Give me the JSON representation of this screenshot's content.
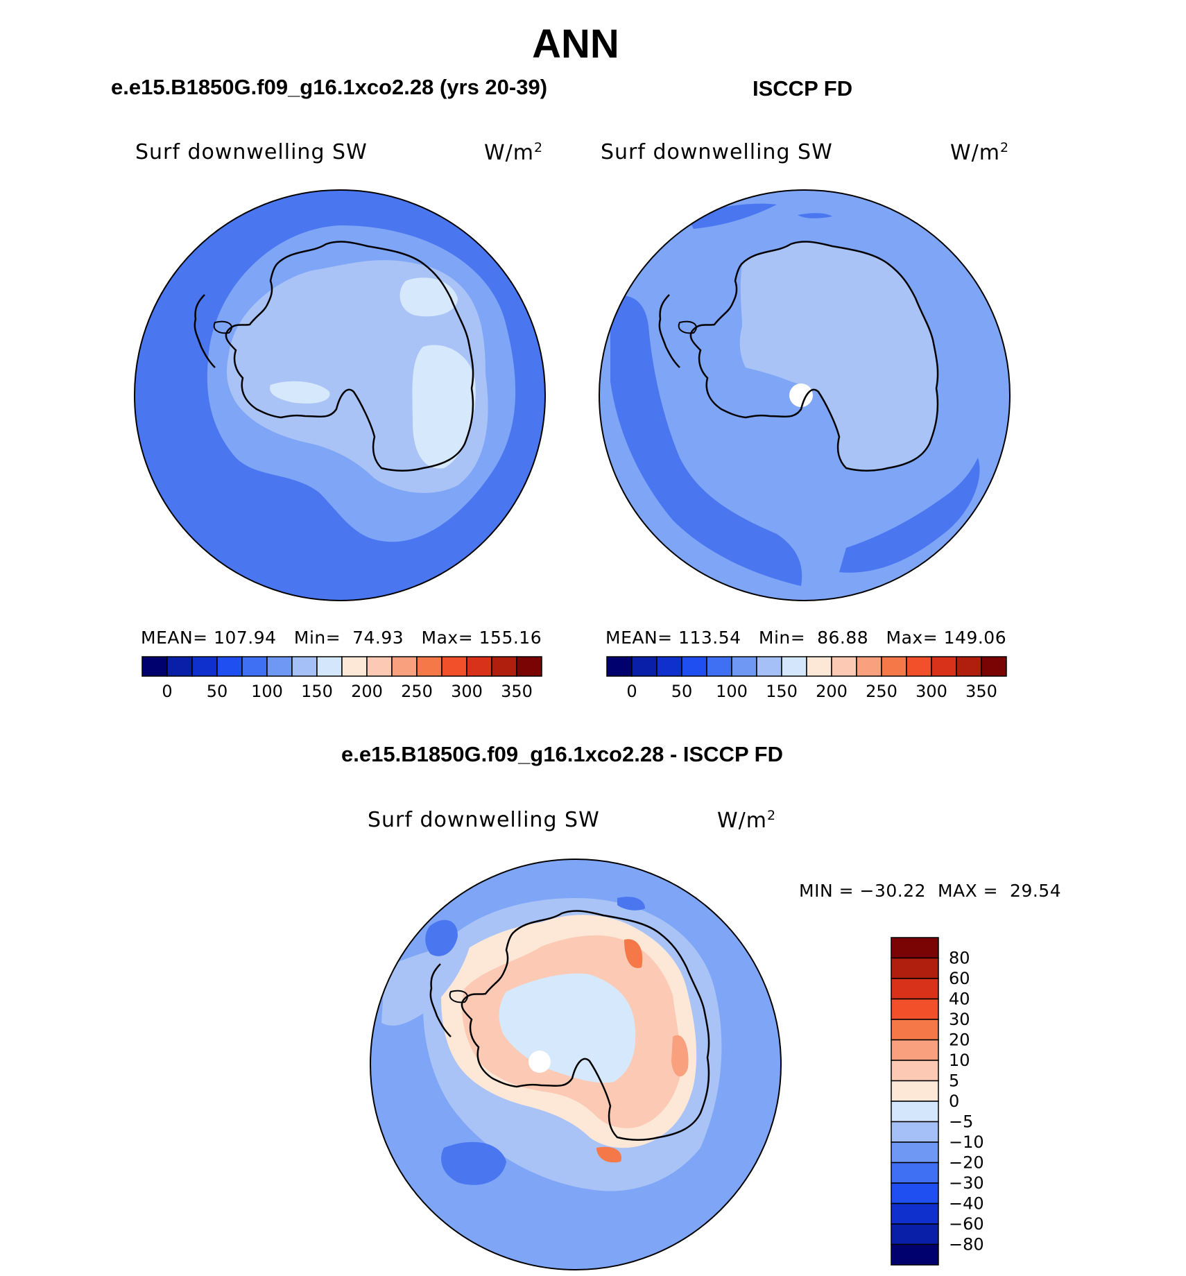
{
  "title": "ANN",
  "panels": [
    {
      "id": "model",
      "heading": "e.e15.B1850G.f09_g16.1xco2.28 (yrs 20-39)",
      "variable": "Surf downwelling SW",
      "units": "W/m",
      "units_exp": "2",
      "mean_label": "MEAN=",
      "mean": "107.94",
      "min_label": "Min=",
      "min": "74.93",
      "max_label": "Max=",
      "max": "155.16"
    },
    {
      "id": "obs",
      "heading": "ISCCP FD",
      "variable": "Surf downwelling SW",
      "units": "W/m",
      "units_exp": "2",
      "mean_label": "MEAN=",
      "mean": "113.54",
      "min_label": "Min=",
      "min": "86.88",
      "max_label": "Max=",
      "max": "149.06"
    }
  ],
  "abs_colorbar": {
    "colors": [
      "#00006e",
      "#0a1fa8",
      "#0f30cc",
      "#1f4ff0",
      "#3f6ff2",
      "#6f98f4",
      "#a5c0f6",
      "#d3e6fb",
      "#fde8d8",
      "#fccab4",
      "#f9a07e",
      "#f57848",
      "#f2502a",
      "#d8321a",
      "#b01e0e",
      "#7a0403"
    ],
    "tick_labels": [
      "0",
      "50",
      "100",
      "150",
      "200",
      "250",
      "300",
      "350"
    ]
  },
  "difference": {
    "heading": "e.e15.B1850G.f09_g16.1xco2.28 - ISCCP FD",
    "variable": "Surf downwelling SW",
    "units": "W/m",
    "units_exp": "2",
    "min_label": "MIN =",
    "min": "−30.22",
    "max_label": "MAX =",
    "max": "29.54",
    "colorbar": {
      "colors_top_to_bottom": [
        "#7a0403",
        "#b01e0e",
        "#d8321a",
        "#f2502a",
        "#f57848",
        "#f9a07e",
        "#fccab4",
        "#fde8d8",
        "#d3e6fb",
        "#a5c0f6",
        "#6f98f4",
        "#3f6ff2",
        "#1f4ff0",
        "#0f30cc",
        "#0a1fa8",
        "#00006e"
      ],
      "tick_labels_top_to_bottom": [
        "80",
        "60",
        "40",
        "30",
        "20",
        "10",
        "5",
        "0",
        "−5",
        "−10",
        "−20",
        "−30",
        "−40",
        "−60",
        "−80"
      ]
    }
  },
  "colors": {
    "ocean_model": "#4a76f0",
    "ocean_band": "#7ea5f6",
    "land_light": "#a9c3f6",
    "land_lightest": "#d6e8fb",
    "obs_ocean": "#7ea5f6",
    "diff_positive": "#f9a07e",
    "diff_neutral": "#fde8d8",
    "coast": "#000000"
  }
}
